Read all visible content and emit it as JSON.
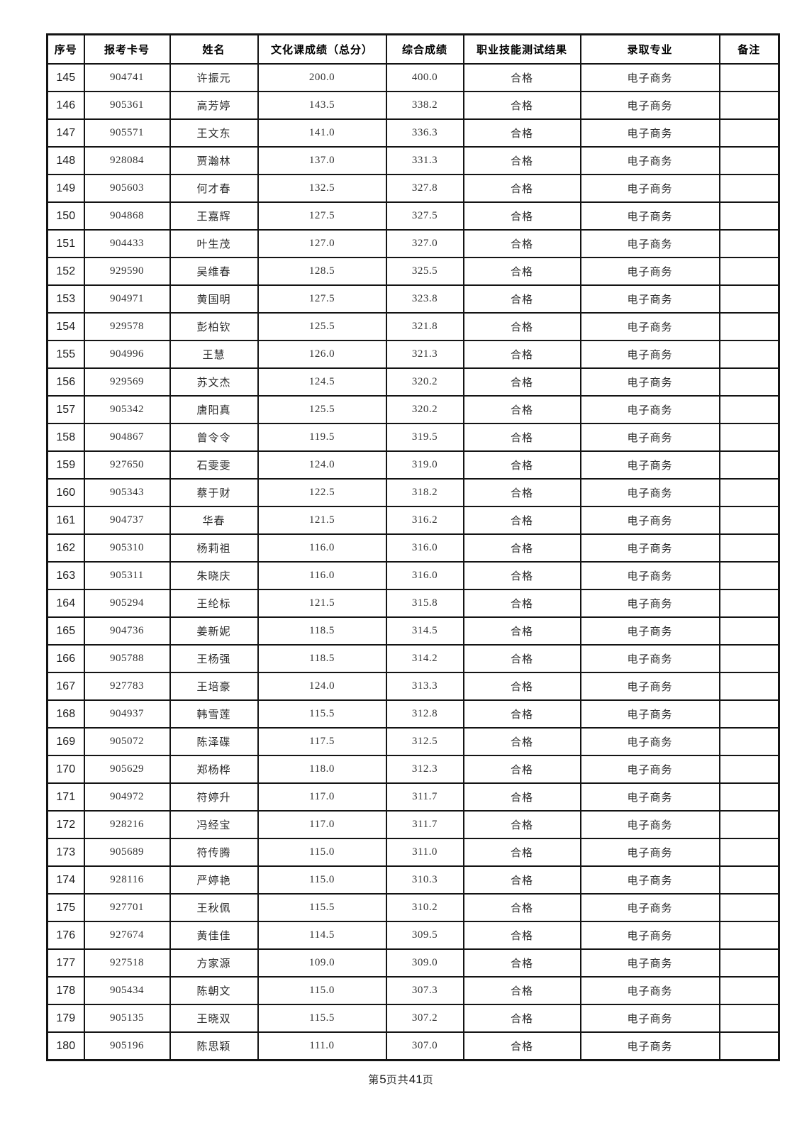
{
  "table": {
    "headers": [
      "序号",
      "报考卡号",
      "姓名",
      "文化课成绩（总分）",
      "综合成绩",
      "职业技能测试结果",
      "录取专业",
      "备注"
    ],
    "rows": [
      [
        "145",
        "904741",
        "许振元",
        "200.0",
        "400.0",
        "合格",
        "电子商务",
        ""
      ],
      [
        "146",
        "905361",
        "高芳婷",
        "143.5",
        "338.2",
        "合格",
        "电子商务",
        ""
      ],
      [
        "147",
        "905571",
        "王文东",
        "141.0",
        "336.3",
        "合格",
        "电子商务",
        ""
      ],
      [
        "148",
        "928084",
        "贾瀚林",
        "137.0",
        "331.3",
        "合格",
        "电子商务",
        ""
      ],
      [
        "149",
        "905603",
        "何才春",
        "132.5",
        "327.8",
        "合格",
        "电子商务",
        ""
      ],
      [
        "150",
        "904868",
        "王嘉辉",
        "127.5",
        "327.5",
        "合格",
        "电子商务",
        ""
      ],
      [
        "151",
        "904433",
        "叶生茂",
        "127.0",
        "327.0",
        "合格",
        "电子商务",
        ""
      ],
      [
        "152",
        "929590",
        "吴维春",
        "128.5",
        "325.5",
        "合格",
        "电子商务",
        ""
      ],
      [
        "153",
        "904971",
        "黄国明",
        "127.5",
        "323.8",
        "合格",
        "电子商务",
        ""
      ],
      [
        "154",
        "929578",
        "彭柏钦",
        "125.5",
        "321.8",
        "合格",
        "电子商务",
        ""
      ],
      [
        "155",
        "904996",
        "王慧",
        "126.0",
        "321.3",
        "合格",
        "电子商务",
        ""
      ],
      [
        "156",
        "929569",
        "苏文杰",
        "124.5",
        "320.2",
        "合格",
        "电子商务",
        ""
      ],
      [
        "157",
        "905342",
        "唐阳真",
        "125.5",
        "320.2",
        "合格",
        "电子商务",
        ""
      ],
      [
        "158",
        "904867",
        "曾令令",
        "119.5",
        "319.5",
        "合格",
        "电子商务",
        ""
      ],
      [
        "159",
        "927650",
        "石雯雯",
        "124.0",
        "319.0",
        "合格",
        "电子商务",
        ""
      ],
      [
        "160",
        "905343",
        "蔡于财",
        "122.5",
        "318.2",
        "合格",
        "电子商务",
        ""
      ],
      [
        "161",
        "904737",
        "华春",
        "121.5",
        "316.2",
        "合格",
        "电子商务",
        ""
      ],
      [
        "162",
        "905310",
        "杨莉祖",
        "116.0",
        "316.0",
        "合格",
        "电子商务",
        ""
      ],
      [
        "163",
        "905311",
        "朱晓庆",
        "116.0",
        "316.0",
        "合格",
        "电子商务",
        ""
      ],
      [
        "164",
        "905294",
        "王纶标",
        "121.5",
        "315.8",
        "合格",
        "电子商务",
        ""
      ],
      [
        "165",
        "904736",
        "姜新妮",
        "118.5",
        "314.5",
        "合格",
        "电子商务",
        ""
      ],
      [
        "166",
        "905788",
        "王杨强",
        "118.5",
        "314.2",
        "合格",
        "电子商务",
        ""
      ],
      [
        "167",
        "927783",
        "王培豪",
        "124.0",
        "313.3",
        "合格",
        "电子商务",
        ""
      ],
      [
        "168",
        "904937",
        "韩雪莲",
        "115.5",
        "312.8",
        "合格",
        "电子商务",
        ""
      ],
      [
        "169",
        "905072",
        "陈泽碟",
        "117.5",
        "312.5",
        "合格",
        "电子商务",
        ""
      ],
      [
        "170",
        "905629",
        "郑杨桦",
        "118.0",
        "312.3",
        "合格",
        "电子商务",
        ""
      ],
      [
        "171",
        "904972",
        "符婷升",
        "117.0",
        "311.7",
        "合格",
        "电子商务",
        ""
      ],
      [
        "172",
        "928216",
        "冯经宝",
        "117.0",
        "311.7",
        "合格",
        "电子商务",
        ""
      ],
      [
        "173",
        "905689",
        "符传腾",
        "115.0",
        "311.0",
        "合格",
        "电子商务",
        ""
      ],
      [
        "174",
        "928116",
        "严婷艳",
        "115.0",
        "310.3",
        "合格",
        "电子商务",
        ""
      ],
      [
        "175",
        "927701",
        "王秋佩",
        "115.5",
        "310.2",
        "合格",
        "电子商务",
        ""
      ],
      [
        "176",
        "927674",
        "黄佳佳",
        "114.5",
        "309.5",
        "合格",
        "电子商务",
        ""
      ],
      [
        "177",
        "927518",
        "方家源",
        "109.0",
        "309.0",
        "合格",
        "电子商务",
        ""
      ],
      [
        "178",
        "905434",
        "陈朝文",
        "115.0",
        "307.3",
        "合格",
        "电子商务",
        ""
      ],
      [
        "179",
        "905135",
        "王晓双",
        "115.5",
        "307.2",
        "合格",
        "电子商务",
        ""
      ],
      [
        "180",
        "905196",
        "陈思颖",
        "111.0",
        "307.0",
        "合格",
        "电子商务",
        ""
      ]
    ]
  },
  "footer": {
    "prefix": "第",
    "page_number": "5",
    "middle": "页共",
    "total_pages": "41",
    "suffix": "页"
  },
  "colors": {
    "border": "#141414",
    "header_text": "#000000",
    "body_text": "#2a2a2a",
    "background": "#ffffff"
  }
}
